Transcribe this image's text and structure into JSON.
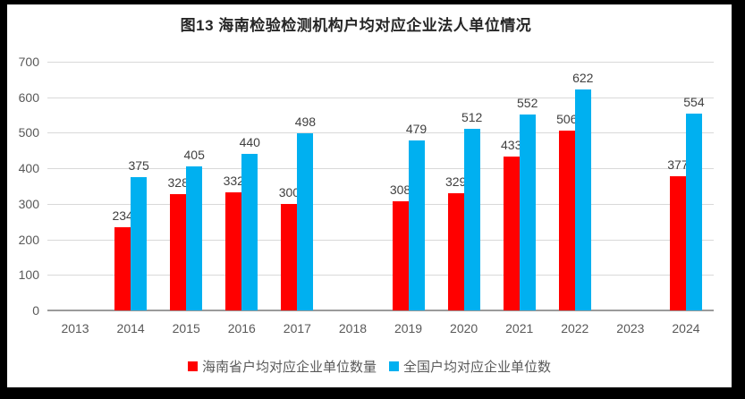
{
  "title": "图13 海南检验检测机构户均对应企业法人单位情况",
  "frame": {
    "border_color": "#000000",
    "background": "#ffffff"
  },
  "chart_data": {
    "type": "bar",
    "title": "图13 海南检验检测机构户均对应企业法人单位情况",
    "categories": [
      "2013",
      "2014",
      "2015",
      "2016",
      "2017",
      "2018",
      "2019",
      "2020",
      "2021",
      "2022",
      "2023",
      "2024"
    ],
    "series": [
      {
        "name": "海南省户均对应企业单位数量",
        "color": "#ff0000",
        "values": [
          null,
          234,
          328,
          332,
          300,
          null,
          308,
          329,
          433,
          506,
          null,
          377
        ]
      },
      {
        "name": "全国户均对应企业单位数",
        "color": "#00b0f0",
        "values": [
          null,
          375,
          405,
          440,
          498,
          null,
          479,
          512,
          552,
          622,
          null,
          554
        ]
      }
    ],
    "xlabel": "",
    "ylabel": "",
    "ylim": [
      0,
      700
    ],
    "yticks": [
      0,
      100,
      200,
      300,
      400,
      500,
      600,
      700
    ],
    "grid": true,
    "gridline_color": "#d9d9d9",
    "axis_line_color": "#9b9b9b",
    "tick_label_color": "#595959",
    "data_label_color": "#404040",
    "legend_position": "bottom",
    "data_labels_shown": true
  }
}
